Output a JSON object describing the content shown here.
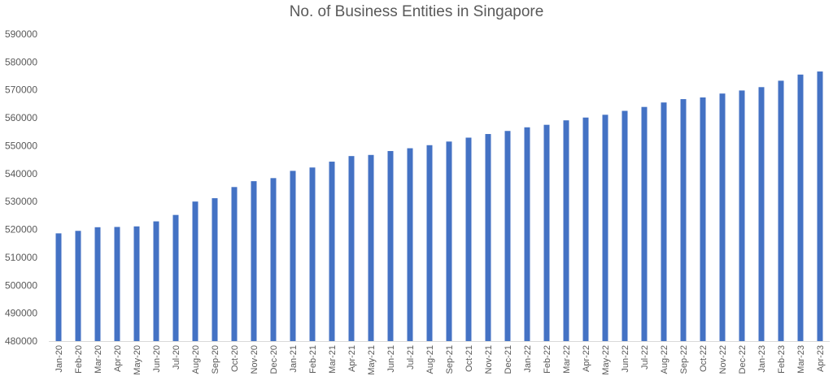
{
  "chart_data": {
    "type": "bar",
    "title": "No. of Business Entities in Singapore",
    "xlabel": "",
    "ylabel": "",
    "ylim": [
      480000,
      590000
    ],
    "yticks": [
      480000,
      490000,
      500000,
      510000,
      520000,
      530000,
      540000,
      550000,
      560000,
      570000,
      580000,
      590000
    ],
    "grid": false,
    "legend": "none",
    "bar_color": "#4472C4",
    "categories": [
      "Jan-20",
      "Feb-20",
      "Mar-20",
      "Apr-20",
      "May-20",
      "Jun-20",
      "Jul-20",
      "Aug-20",
      "Sep-20",
      "Oct-20",
      "Nov-20",
      "Dec-20",
      "Jan-21",
      "Feb-21",
      "Mar-21",
      "Apr-21",
      "May-21",
      "Jun-21",
      "Jul-21",
      "Aug-21",
      "Sep-21",
      "Oct-21",
      "Nov-21",
      "Dec-21",
      "Jan-22",
      "Feb-22",
      "Mar-22",
      "Apr-22",
      "May-22",
      "Jun-22",
      "Jul-22",
      "Aug-22",
      "Sep-22",
      "Oct-22",
      "Nov-22",
      "Dec-22",
      "Jan-23",
      "Feb-23",
      "Mar-23",
      "Apr-23"
    ],
    "values": [
      518600,
      519500,
      520800,
      520900,
      521100,
      522900,
      525200,
      530000,
      531200,
      535200,
      537300,
      538400,
      541000,
      542200,
      544300,
      546300,
      546700,
      548100,
      549100,
      550200,
      551500,
      552900,
      554200,
      555300,
      556600,
      557500,
      559100,
      560100,
      561100,
      562500,
      563900,
      565500,
      566700,
      567300,
      568700,
      569800,
      571000,
      573300,
      575500,
      576600
    ]
  }
}
